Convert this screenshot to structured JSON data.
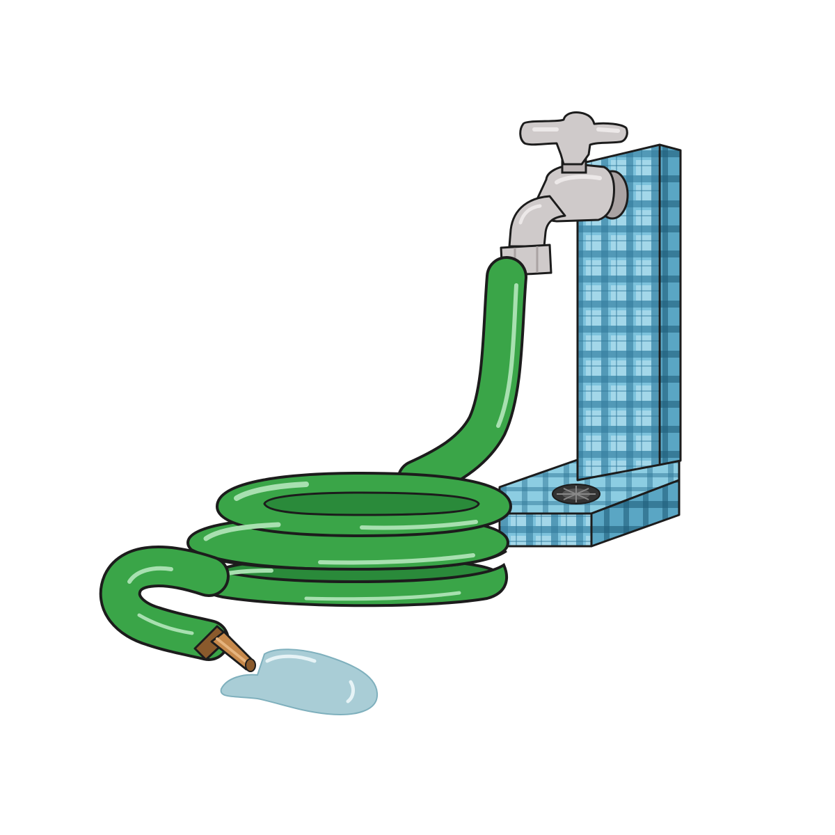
{
  "colors": {
    "background": "#ffffff",
    "outline": "#1c1c1c",
    "hose": "#3aa548",
    "hose_dark": "#2a8a3a",
    "hose_highlight": "#a8e0b0",
    "faucet": "#cfcaca",
    "faucet_shade": "#aaa3a3",
    "faucet_light": "#ece8e8",
    "tile": "#7cc2dc",
    "tile_light": "#b4e0ee",
    "tile_grid": "#2f7898",
    "drain": "#333333",
    "nozzle": "#c7894b",
    "nozzle_dark": "#8a5a2c",
    "puddle": "#a9cdd6",
    "puddle_highlight": "#e6f3f6"
  },
  "objects": [
    "garden-hose",
    "faucet",
    "tiled-post",
    "drain",
    "nozzle",
    "water-puddle"
  ]
}
